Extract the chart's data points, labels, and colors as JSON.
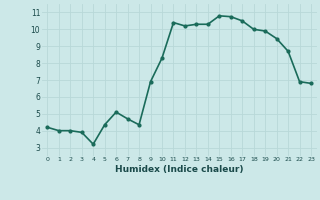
{
  "x": [
    0,
    1,
    2,
    3,
    4,
    5,
    6,
    7,
    8,
    9,
    10,
    11,
    12,
    13,
    14,
    15,
    16,
    17,
    18,
    19,
    20,
    21,
    22,
    23
  ],
  "y": [
    4.2,
    4.0,
    4.0,
    3.9,
    3.2,
    4.35,
    5.1,
    4.7,
    4.35,
    6.9,
    8.3,
    10.4,
    10.2,
    10.3,
    10.3,
    10.8,
    10.75,
    10.5,
    10.0,
    9.9,
    9.45,
    8.7,
    6.9,
    6.8
  ],
  "line_color": "#1a6b5a",
  "marker": "o",
  "marker_size": 2.0,
  "xlabel": "Humidex (Indice chaleur)",
  "xlim": [
    -0.5,
    23.5
  ],
  "ylim": [
    2.5,
    11.5
  ],
  "yticks": [
    3,
    4,
    5,
    6,
    7,
    8,
    9,
    10,
    11
  ],
  "xticks": [
    0,
    1,
    2,
    3,
    4,
    5,
    6,
    7,
    8,
    9,
    10,
    11,
    12,
    13,
    14,
    15,
    16,
    17,
    18,
    19,
    20,
    21,
    22,
    23
  ],
  "xtick_labels": [
    "0",
    "1",
    "2",
    "3",
    "4",
    "5",
    "6",
    "7",
    "8",
    "9",
    "10",
    "11",
    "12",
    "13",
    "14",
    "15",
    "16",
    "17",
    "18",
    "19",
    "20",
    "21",
    "22",
    "23"
  ],
  "grid_color": "#b8d8d8",
  "bg_color": "#cce8e8",
  "line_width": 1.2
}
